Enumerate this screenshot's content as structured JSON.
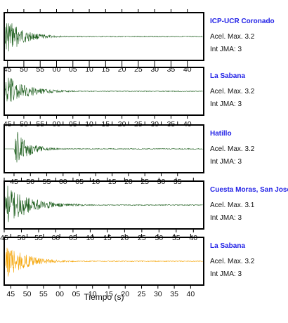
{
  "chart_data": {
    "type": "line",
    "xlabel": "Tiempo (s)",
    "grid": false,
    "panels": [
      {
        "station": "ICP-UCR Coronado",
        "accel_label": "Acel. Max. 3.2",
        "jma_label": "Int JMA: 3",
        "color": "#1a5c1a",
        "x_ticks": [
          "45",
          "50",
          "55",
          "00",
          "05",
          "10",
          "15",
          "20",
          "25",
          "30",
          "35",
          "40"
        ],
        "x_range_s": [
          -46,
          15
        ],
        "tick_start_s": -45,
        "onset_s": -46,
        "peak": 1.0,
        "decay_s": 5
      },
      {
        "station": "La Sabana",
        "accel_label": "Acel. Max. 3.2",
        "jma_label": "Int JMA: 3",
        "color": "#1a5c1a",
        "x_ticks": [
          "45",
          "50",
          "55",
          "00",
          "05",
          "10",
          "15",
          "20",
          "25",
          "30",
          "35",
          "40"
        ],
        "x_range_s": [
          -46,
          15
        ],
        "tick_start_s": -45,
        "onset_s": -46,
        "peak": 0.85,
        "decay_s": 6
      },
      {
        "station": "Hatillo",
        "accel_label": "Acel. Max. 3.2",
        "jma_label": "Int JMA: 3",
        "color": "#1a5c1a",
        "x_ticks": [
          "40",
          "45",
          "50",
          "55",
          "00",
          "05",
          "10",
          "15",
          "20",
          "25",
          "30",
          "35"
        ],
        "x_range_s": [
          -48,
          13
        ],
        "tick_start_s": -50,
        "onset_s": -45,
        "peak": 1.0,
        "decay_s": 4
      },
      {
        "station": "Cuesta Moras, San Jose",
        "accel_label": "Acel. Max. 3.1",
        "jma_label": "Int JMA: 3",
        "color": "#1a5c1a",
        "x_ticks": [
          "45",
          "50",
          "55",
          "00",
          "05",
          "10",
          "15",
          "20",
          "25",
          "30",
          "35",
          "40"
        ],
        "x_range_s": [
          -45,
          13
        ],
        "tick_start_s": -45,
        "onset_s": -45,
        "peak": 1.0,
        "decay_s": 7
      },
      {
        "station": "La Sabana",
        "accel_label": "Acel. Max. 3.2",
        "jma_label": "Int JMA: 3",
        "color": "#f5a300",
        "x_ticks": [
          "45",
          "50",
          "55",
          "00",
          "05",
          "10",
          "15",
          "20",
          "25",
          "30",
          "35",
          "40"
        ],
        "x_range_s": [
          -47,
          14
        ],
        "tick_start_s": -45,
        "onset_s": -47,
        "peak": 0.9,
        "decay_s": 6
      }
    ]
  }
}
